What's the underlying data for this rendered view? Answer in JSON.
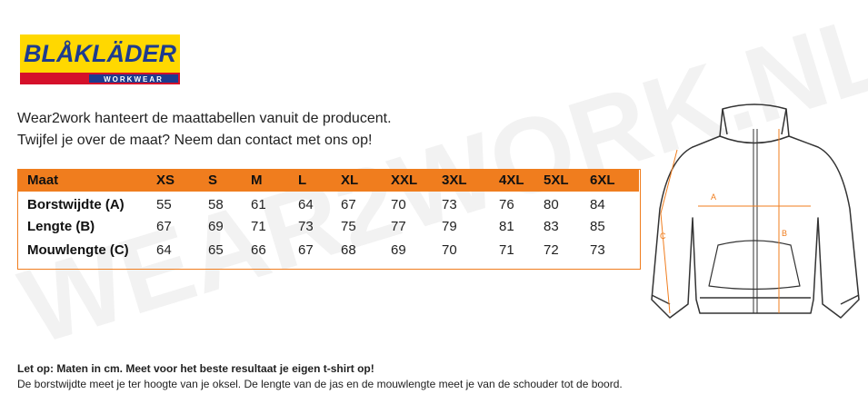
{
  "logo": {
    "brand": "BLÅKLÄDER",
    "tagline": "WORKWEAR"
  },
  "watermark": "WEAR2WORK.NL",
  "intro": [
    "Wear2work hanteert de maattabellen vanuit de producent.",
    "Twijfel je over de maat? Neem dan contact met ons op!"
  ],
  "table": {
    "header": [
      "Maat",
      "XS",
      "S",
      "M",
      "L",
      "XL",
      "XXL",
      "3XL",
      "4XL",
      "5XL",
      "6XL"
    ],
    "rows": [
      [
        "Borstwijdte (A)",
        55,
        58,
        61,
        64,
        67,
        70,
        73,
        76,
        80,
        84
      ],
      [
        "Lengte (B)",
        67,
        69,
        71,
        73,
        75,
        77,
        79,
        81,
        83,
        85
      ],
      [
        "Mouwlengte (C)",
        64,
        65,
        66,
        67,
        68,
        69,
        70,
        71,
        72,
        73
      ]
    ]
  },
  "illustration": {
    "labels": [
      "A",
      "B",
      "C"
    ]
  },
  "footer": {
    "note": "Let op: Maten in cm. Meet voor het beste resultaat je eigen t-shirt op!",
    "text": "De borstwijdte meet je ter hoogte van je oksel. De lengte van de jas en de mouwlengte meet je van de schouder tot de boord."
  }
}
